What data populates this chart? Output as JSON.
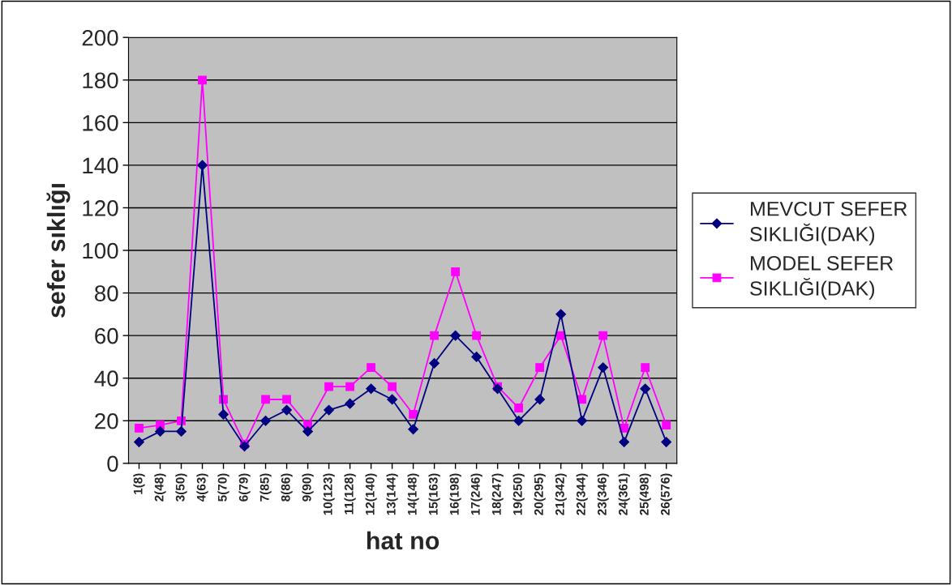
{
  "chart_data": {
    "type": "line",
    "xlabel": "hat no",
    "ylabel": "sefer sıklığı",
    "categories": [
      "1(8)",
      "2(48)",
      "3(50)",
      "4(63)",
      "5(70)",
      "6(79)",
      "7(85)",
      "8(86)",
      "9(90)",
      "10(123)",
      "11(128)",
      "12(140)",
      "13(144)",
      "14(148)",
      "15(163)",
      "16(198)",
      "17(246)",
      "18(247)",
      "19(250)",
      "20(295)",
      "21(342)",
      "22(344)",
      "23(346)",
      "24(361)",
      "25(498)",
      "26(576)"
    ],
    "series": [
      {
        "name": "MEVCUT SEFER SIKLIĞI(DAK)",
        "color": "#000080",
        "marker": "diamond",
        "values": [
          10,
          15,
          15,
          140,
          23,
          8,
          20,
          25,
          15,
          25,
          28,
          35,
          30,
          16,
          47,
          60,
          50,
          35,
          20,
          30,
          70,
          20,
          45,
          10,
          35,
          10
        ]
      },
      {
        "name": "MODEL SEFER SIKLIĞI(DAK)",
        "color": "#ff00ff",
        "marker": "square",
        "values": [
          16.5,
          18,
          20,
          180,
          30,
          9,
          30,
          30,
          18,
          36,
          36,
          45,
          36,
          23,
          60,
          90,
          60,
          36,
          26,
          45,
          60,
          30,
          60,
          16.5,
          45,
          18
        ]
      }
    ],
    "ylim": [
      0,
      200
    ],
    "yticks": [
      0,
      20,
      40,
      60,
      80,
      100,
      120,
      140,
      160,
      180,
      200
    ],
    "grid": "y",
    "legend": "right",
    "line_style": "solid"
  }
}
